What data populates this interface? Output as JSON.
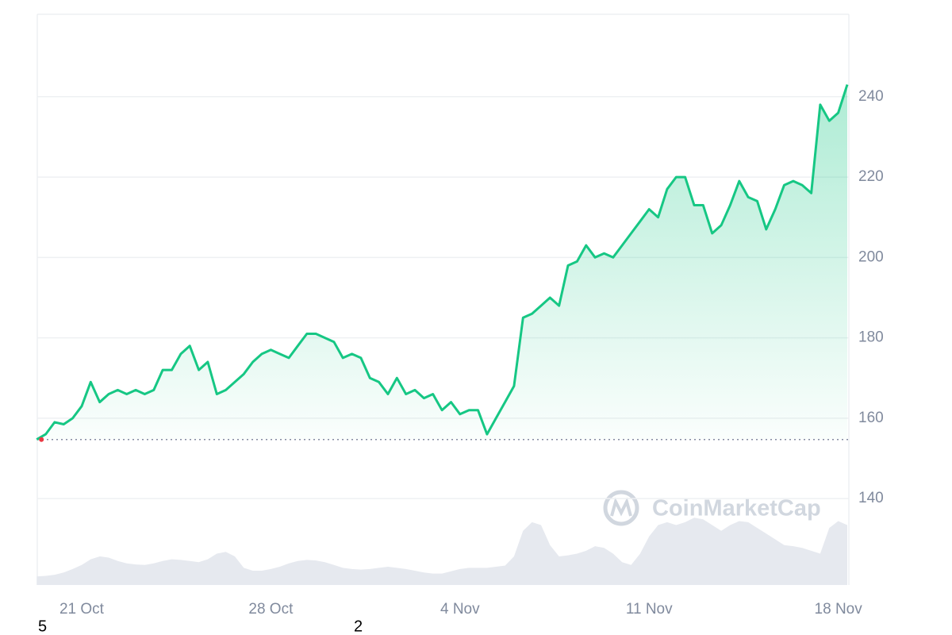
{
  "chart_data": {
    "type": "line",
    "categories": [
      null,
      null,
      null,
      null,
      null,
      "21 Oct",
      null,
      null,
      null,
      null,
      null,
      null,
      null,
      null,
      null,
      null,
      null,
      null,
      null,
      null,
      null,
      null,
      null,
      null,
      null,
      null,
      "28 Oct",
      null,
      null,
      null,
      null,
      null,
      null,
      null,
      null,
      null,
      null,
      null,
      null,
      null,
      null,
      null,
      null,
      null,
      null,
      null,
      null,
      "4 Nov",
      null,
      null,
      null,
      null,
      null,
      null,
      null,
      null,
      null,
      null,
      null,
      null,
      null,
      null,
      null,
      null,
      null,
      null,
      null,
      null,
      "11 Nov",
      null,
      null,
      null,
      null,
      null,
      null,
      null,
      null,
      null,
      null,
      null,
      null,
      null,
      null,
      null,
      null,
      null,
      null,
      null,
      null,
      "18 Nov",
      null
    ],
    "series": [
      {
        "color": "#16c784",
        "values": [
          154.7,
          156,
          159,
          158.5,
          160,
          163,
          169,
          164,
          166,
          167,
          166,
          167,
          166,
          167,
          172,
          172,
          176,
          178,
          172,
          174,
          166,
          167,
          169,
          171,
          174,
          176,
          177,
          176,
          175,
          178,
          181,
          181,
          180,
          179,
          175,
          176,
          175,
          170,
          169,
          166,
          170,
          166,
          167,
          165,
          166,
          162,
          164,
          161,
          162,
          162,
          156,
          160,
          164,
          168,
          185,
          186,
          188,
          190,
          188,
          198,
          199,
          203,
          200,
          201,
          200,
          203,
          206,
          209,
          212,
          210,
          217,
          220,
          220,
          213,
          213,
          206,
          208,
          213,
          219,
          215,
          214,
          207,
          212,
          218,
          219,
          218,
          216,
          238,
          234,
          236,
          243
        ]
      },
      {
        "color": "#e6e9ef",
        "axis": "y2",
        "values": [
          1.5,
          1.6,
          1.8,
          2.2,
          2.8,
          3.5,
          4.5,
          5.0,
          4.8,
          4.2,
          3.8,
          3.6,
          3.5,
          3.8,
          4.2,
          4.5,
          4.4,
          4.2,
          4.0,
          4.5,
          5.5,
          5.8,
          5.0,
          3.0,
          2.5,
          2.5,
          2.8,
          3.2,
          3.8,
          4.2,
          4.4,
          4.3,
          4.0,
          3.5,
          3.0,
          2.8,
          2.7,
          2.8,
          3.0,
          3.2,
          3.0,
          2.8,
          2.5,
          2.2,
          2.0,
          2.0,
          2.4,
          2.8,
          3.0,
          3.0,
          3.0,
          3.2,
          3.4,
          5.0,
          9.5,
          11.0,
          10.5,
          7.0,
          5.0,
          5.2,
          5.5,
          6.0,
          6.8,
          6.5,
          5.5,
          4.0,
          3.5,
          5.5,
          8.5,
          10.5,
          11.0,
          10.5,
          11.0,
          11.8,
          11.5,
          10.5,
          9.5,
          10.5,
          11.2,
          11.0,
          10.0,
          9.0,
          8.0,
          7.0,
          6.8,
          6.5,
          6.0,
          5.5,
          10.0,
          11.2,
          10.5
        ]
      }
    ],
    "ylim": [
      118.5,
      260.5
    ],
    "yticks": [
      140,
      160,
      180,
      200,
      220,
      240
    ],
    "y2lim": [
      0,
      100
    ],
    "grid": true,
    "watermark": "CoinMarketCap",
    "footer_labels": [
      "5",
      "2"
    ]
  }
}
